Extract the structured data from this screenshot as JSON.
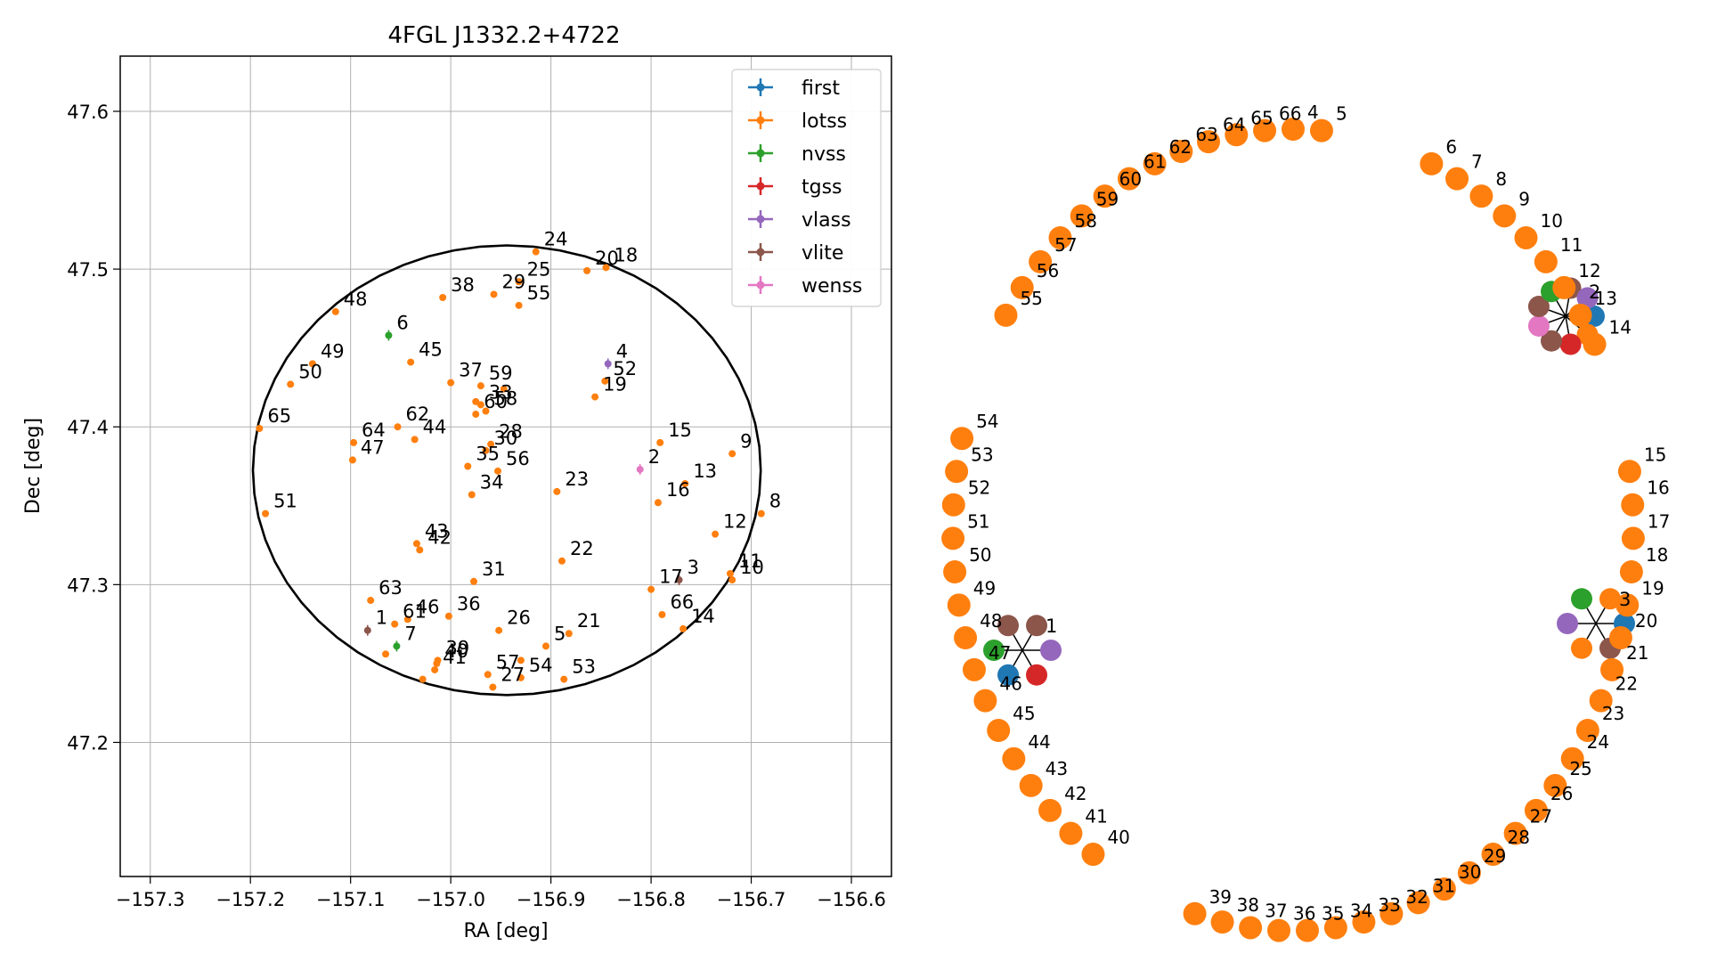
{
  "chart_data": [
    {
      "type": "scatter",
      "title": "4FGL J1332.2+4722",
      "xlabel": "RA [deg]",
      "ylabel": "Dec [deg]",
      "xlim": [
        -157.33,
        -156.56
      ],
      "ylim": [
        47.115,
        47.635
      ],
      "xticks": [
        -157.3,
        -157.2,
        -157.1,
        -157.0,
        -156.9,
        -156.8,
        -156.7,
        -156.6
      ],
      "xtick_labels": [
        "−157.3",
        "−157.2",
        "−157.1",
        "−157.0",
        "−156.9",
        "−156.8",
        "−156.7",
        "−156.6"
      ],
      "yticks": [
        47.2,
        47.3,
        47.4,
        47.5,
        47.6
      ],
      "ytick_labels": [
        "47.2",
        "47.3",
        "47.4",
        "47.5",
        "47.6"
      ],
      "grid": true,
      "legend_position": "top-right",
      "error_ellipse": {
        "center": [
          -156.944,
          47.3725
        ],
        "semi_axis_ra": 0.2535,
        "semi_axis_dec": 0.1425,
        "color": "#000000"
      },
      "series": [
        {
          "name": "first",
          "color": "#1f77b4",
          "points": []
        },
        {
          "name": "lotss",
          "color": "#ff7f0e",
          "points": [
            {
              "label": "5",
              "x": -156.905,
              "y": 47.261
            },
            {
              "label": "8",
              "x": -156.69,
              "y": 47.345
            },
            {
              "label": "9",
              "x": -156.719,
              "y": 47.383
            },
            {
              "label": "10",
              "x": -156.719,
              "y": 47.303
            },
            {
              "label": "11",
              "x": -156.721,
              "y": 47.307
            },
            {
              "label": "12",
              "x": -156.736,
              "y": 47.332
            },
            {
              "label": "13",
              "x": -156.766,
              "y": 47.364
            },
            {
              "label": "14",
              "x": -156.768,
              "y": 47.272
            },
            {
              "label": "15",
              "x": -156.791,
              "y": 47.39
            },
            {
              "label": "16",
              "x": -156.793,
              "y": 47.352
            },
            {
              "label": "17",
              "x": -156.8,
              "y": 47.297
            },
            {
              "label": "18",
              "x": -156.845,
              "y": 47.501
            },
            {
              "label": "19",
              "x": -156.856,
              "y": 47.419
            },
            {
              "label": "20",
              "x": -156.864,
              "y": 47.499
            },
            {
              "label": "21",
              "x": -156.882,
              "y": 47.269
            },
            {
              "label": "22",
              "x": -156.889,
              "y": 47.315
            },
            {
              "label": "23",
              "x": -156.894,
              "y": 47.359
            },
            {
              "label": "24",
              "x": -156.915,
              "y": 47.511
            },
            {
              "label": "25",
              "x": -156.932,
              "y": 47.492
            },
            {
              "label": "26",
              "x": -156.952,
              "y": 47.271
            },
            {
              "label": "27",
              "x": -156.958,
              "y": 47.235
            },
            {
              "label": "28",
              "x": -156.96,
              "y": 47.389
            },
            {
              "label": "29",
              "x": -156.957,
              "y": 47.484
            },
            {
              "label": "30",
              "x": -156.965,
              "y": 47.385
            },
            {
              "label": "31",
              "x": -156.977,
              "y": 47.302
            },
            {
              "label": "33",
              "x": -156.97,
              "y": 47.414
            },
            {
              "label": "34",
              "x": -156.979,
              "y": 47.357
            },
            {
              "label": "35",
              "x": -156.983,
              "y": 47.375
            },
            {
              "label": "36",
              "x": -157.002,
              "y": 47.28
            },
            {
              "label": "37",
              "x": -157.0,
              "y": 47.428
            },
            {
              "label": "38",
              "x": -157.008,
              "y": 47.482
            },
            {
              "label": "39",
              "x": -157.013,
              "y": 47.252
            },
            {
              "label": "40",
              "x": -157.014,
              "y": 47.25
            },
            {
              "label": "41",
              "x": -157.016,
              "y": 47.246
            },
            {
              "label": "42",
              "x": -157.031,
              "y": 47.322
            },
            {
              "label": "43",
              "x": -157.034,
              "y": 47.326
            },
            {
              "label": "44",
              "x": -157.036,
              "y": 47.392
            },
            {
              "label": "45",
              "x": -157.04,
              "y": 47.441
            },
            {
              "label": "46",
              "x": -157.043,
              "y": 47.278
            },
            {
              "label": "47",
              "x": -157.098,
              "y": 47.379
            },
            {
              "label": "48",
              "x": -157.115,
              "y": 47.473
            },
            {
              "label": "49",
              "x": -157.138,
              "y": 47.44
            },
            {
              "label": "50",
              "x": -157.16,
              "y": 47.427
            },
            {
              "label": "51",
              "x": -157.185,
              "y": 47.345
            },
            {
              "label": "52",
              "x": -156.846,
              "y": 47.429
            },
            {
              "label": "53",
              "x": -156.887,
              "y": 47.24
            },
            {
              "label": "54",
              "x": -156.93,
              "y": 47.241
            },
            {
              "label": "55",
              "x": -156.932,
              "y": 47.477
            },
            {
              "label": "56",
              "x": -156.953,
              "y": 47.372
            },
            {
              "label": "57",
              "x": -156.963,
              "y": 47.243
            },
            {
              "label": "58",
              "x": -156.965,
              "y": 47.41
            },
            {
              "label": "59",
              "x": -156.97,
              "y": 47.426
            },
            {
              "label": "60",
              "x": -156.975,
              "y": 47.408
            },
            {
              "label": "61",
              "x": -157.056,
              "y": 47.275
            },
            {
              "label": "62",
              "x": -157.053,
              "y": 47.4
            },
            {
              "label": "63",
              "x": -157.08,
              "y": 47.29
            },
            {
              "label": "64",
              "x": -157.097,
              "y": 47.39
            },
            {
              "label": "65",
              "x": -157.191,
              "y": 47.399
            },
            {
              "label": "66",
              "x": -156.789,
              "y": 47.281
            },
            {
              "label": "",
              "x": -157.028,
              "y": 47.24
            },
            {
              "label": "",
              "x": -156.947,
              "y": 47.424
            },
            {
              "label": "",
              "x": -156.975,
              "y": 47.416
            },
            {
              "label": "",
              "x": -156.93,
              "y": 47.252
            },
            {
              "label": "",
              "x": -157.065,
              "y": 47.256
            }
          ]
        },
        {
          "name": "nvss",
          "color": "#2ca02c",
          "points": [
            {
              "label": "6",
              "x": -157.062,
              "y": 47.458
            },
            {
              "label": "7",
              "x": -157.054,
              "y": 47.261
            }
          ]
        },
        {
          "name": "tgss",
          "color": "#d62728",
          "points": []
        },
        {
          "name": "vlass",
          "color": "#9467bd",
          "points": [
            {
              "label": "4",
              "x": -156.843,
              "y": 47.44
            }
          ]
        },
        {
          "name": "vlite",
          "color": "#8c564b",
          "points": [
            {
              "label": "3",
              "x": -156.772,
              "y": 47.303
            },
            {
              "label": "1",
              "x": -157.083,
              "y": 47.271
            }
          ]
        },
        {
          "name": "wenss",
          "color": "#e377c2",
          "points": [
            {
              "label": "2",
              "x": -156.811,
              "y": 47.373
            }
          ]
        }
      ]
    },
    {
      "type": "network",
      "title": "",
      "nodes": [
        {
          "label": "1",
          "color": "#1f77b4",
          "degree": 1
        }
      ],
      "labels": [
        "1",
        "2",
        "3",
        "4",
        "5",
        "6",
        "7",
        "8",
        "9",
        "10",
        "11",
        "12",
        "13",
        "14",
        "15",
        "16",
        "17",
        "18",
        "19",
        "20",
        "21",
        "22",
        "23",
        "24",
        "25",
        "26",
        "27",
        "28",
        "29",
        "30",
        "31",
        "32",
        "33",
        "34",
        "35",
        "36",
        "37",
        "38",
        "39",
        "40",
        "41",
        "42",
        "43",
        "44",
        "45",
        "46",
        "47",
        "48",
        "49",
        "50",
        "51",
        "52",
        "53",
        "54",
        "55",
        "56",
        "57",
        "58",
        "59",
        "60",
        "61",
        "62",
        "63",
        "64",
        "65",
        "66"
      ]
    }
  ]
}
